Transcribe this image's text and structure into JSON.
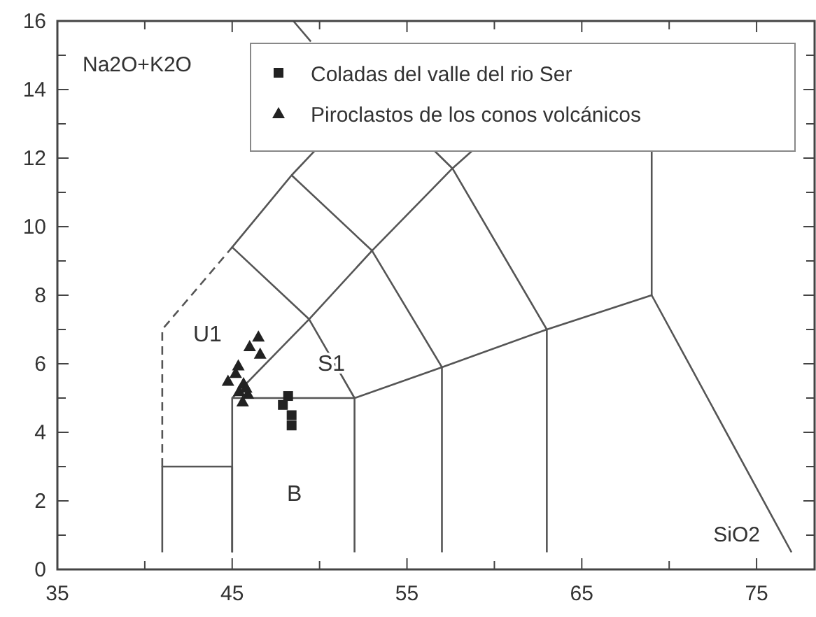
{
  "chart_data": {
    "type": "scatter",
    "xlabel": "SiO2",
    "ylabel": "Na2O+K2O",
    "xlim": [
      35,
      78.4
    ],
    "ylim": [
      0,
      16
    ],
    "xticks": [
      35,
      {
        "value": 40,
        "label": null
      },
      45,
      {
        "value": 50,
        "label": null
      },
      55,
      {
        "value": 60,
        "label": null
      },
      65,
      {
        "value": 70,
        "label": null
      },
      75
    ],
    "yticks": [
      0,
      {
        "value": 1,
        "label": null
      },
      2,
      {
        "value": 3,
        "label": null
      },
      4,
      {
        "value": 5,
        "label": null
      },
      6,
      {
        "value": 7,
        "label": null
      },
      8,
      {
        "value": 9,
        "label": null
      },
      10,
      {
        "value": 11,
        "label": null
      },
      12,
      {
        "value": 13,
        "label": null
      },
      14,
      {
        "value": 15,
        "label": null
      },
      16
    ],
    "legend": "top right",
    "grid": false,
    "series": [
      {
        "name": "Coladas del valle del rio Ser",
        "marker": "square",
        "color": "#222222",
        "x": [
          47.9,
          48.2,
          48.4,
          48.4
        ],
        "values": [
          4.8,
          5.06,
          4.5,
          4.2
        ]
      },
      {
        "name": "Piroclastos de los conos volcánicos",
        "marker": "triangle",
        "color": "#222222",
        "x": [
          44.76,
          45.2,
          45.35,
          45.65,
          45.4,
          45.9,
          45.6,
          46.0,
          46.5,
          46.6,
          45.8
        ],
        "values": [
          5.5,
          5.73,
          5.95,
          5.43,
          5.2,
          5.12,
          4.9,
          6.51,
          6.79,
          6.29,
          5.3
        ]
      },
      {
        "type": "line",
        "marker": "none",
        "line_style": "dashed",
        "color": "#555555",
        "x": [
          41,
          41,
          45
        ],
        "values": [
          3,
          7,
          9.4
        ]
      },
      {
        "type": "line",
        "marker": "none",
        "line_style": "solid",
        "color": "#555555",
        "x": [
          41,
          41,
          45,
          45
        ],
        "values": [
          0.5,
          3,
          3,
          0.5
        ]
      },
      {
        "type": "line",
        "marker": "none",
        "line_style": "solid",
        "color": "#555555",
        "x": [
          45,
          45,
          52,
          52
        ],
        "values": [
          0.5,
          5,
          5,
          0.5
        ]
      },
      {
        "type": "line",
        "marker": "none",
        "line_style": "solid",
        "color": "#555555",
        "x": [
          52,
          57,
          63,
          69,
          77
        ],
        "values": [
          5,
          5.9,
          7,
          8,
          0.5
        ]
      },
      {
        "type": "line",
        "marker": "none",
        "line_style": "solid",
        "color": "#555555",
        "x": [
          57,
          57
        ],
        "values": [
          0.5,
          5.9
        ]
      },
      {
        "type": "line",
        "marker": "none",
        "line_style": "solid",
        "color": "#555555",
        "x": [
          63,
          63
        ],
        "values": [
          0.5,
          7
        ]
      },
      {
        "type": "line",
        "marker": "none",
        "line_style": "solid",
        "color": "#555555",
        "x": [
          69,
          69
        ],
        "values": [
          8,
          12.2
        ]
      },
      {
        "type": "line",
        "marker": "none",
        "line_style": "solid",
        "color": "#555555",
        "x": [
          45,
          49.4,
          53,
          57.6,
          58.7
        ],
        "values": [
          5,
          7.3,
          9.3,
          11.7,
          12.2
        ]
      },
      {
        "type": "line",
        "marker": "none",
        "line_style": "solid",
        "color": "#555555",
        "x": [
          52,
          49.4,
          45,
          48.4,
          49.7
        ],
        "values": [
          5,
          7.3,
          9.4,
          11.5,
          12.2
        ]
      },
      {
        "type": "line",
        "marker": "none",
        "line_style": "solid",
        "color": "#555555",
        "x": [
          48.4,
          53,
          57,
          57
        ],
        "values": [
          11.5,
          9.3,
          5.9,
          5.9
        ]
      },
      {
        "type": "line",
        "marker": "none",
        "line_style": "solid",
        "color": "#555555",
        "x": [
          56.6,
          57.6,
          63
        ],
        "values": [
          12.2,
          11.7,
          7
        ]
      },
      {
        "type": "line",
        "marker": "none",
        "line_style": "solid",
        "color": "#555555",
        "x": [
          48.5,
          49.5
        ],
        "values": [
          16,
          15.4
        ]
      }
    ],
    "annotations": [
      "U1",
      "S1",
      "B"
    ]
  }
}
